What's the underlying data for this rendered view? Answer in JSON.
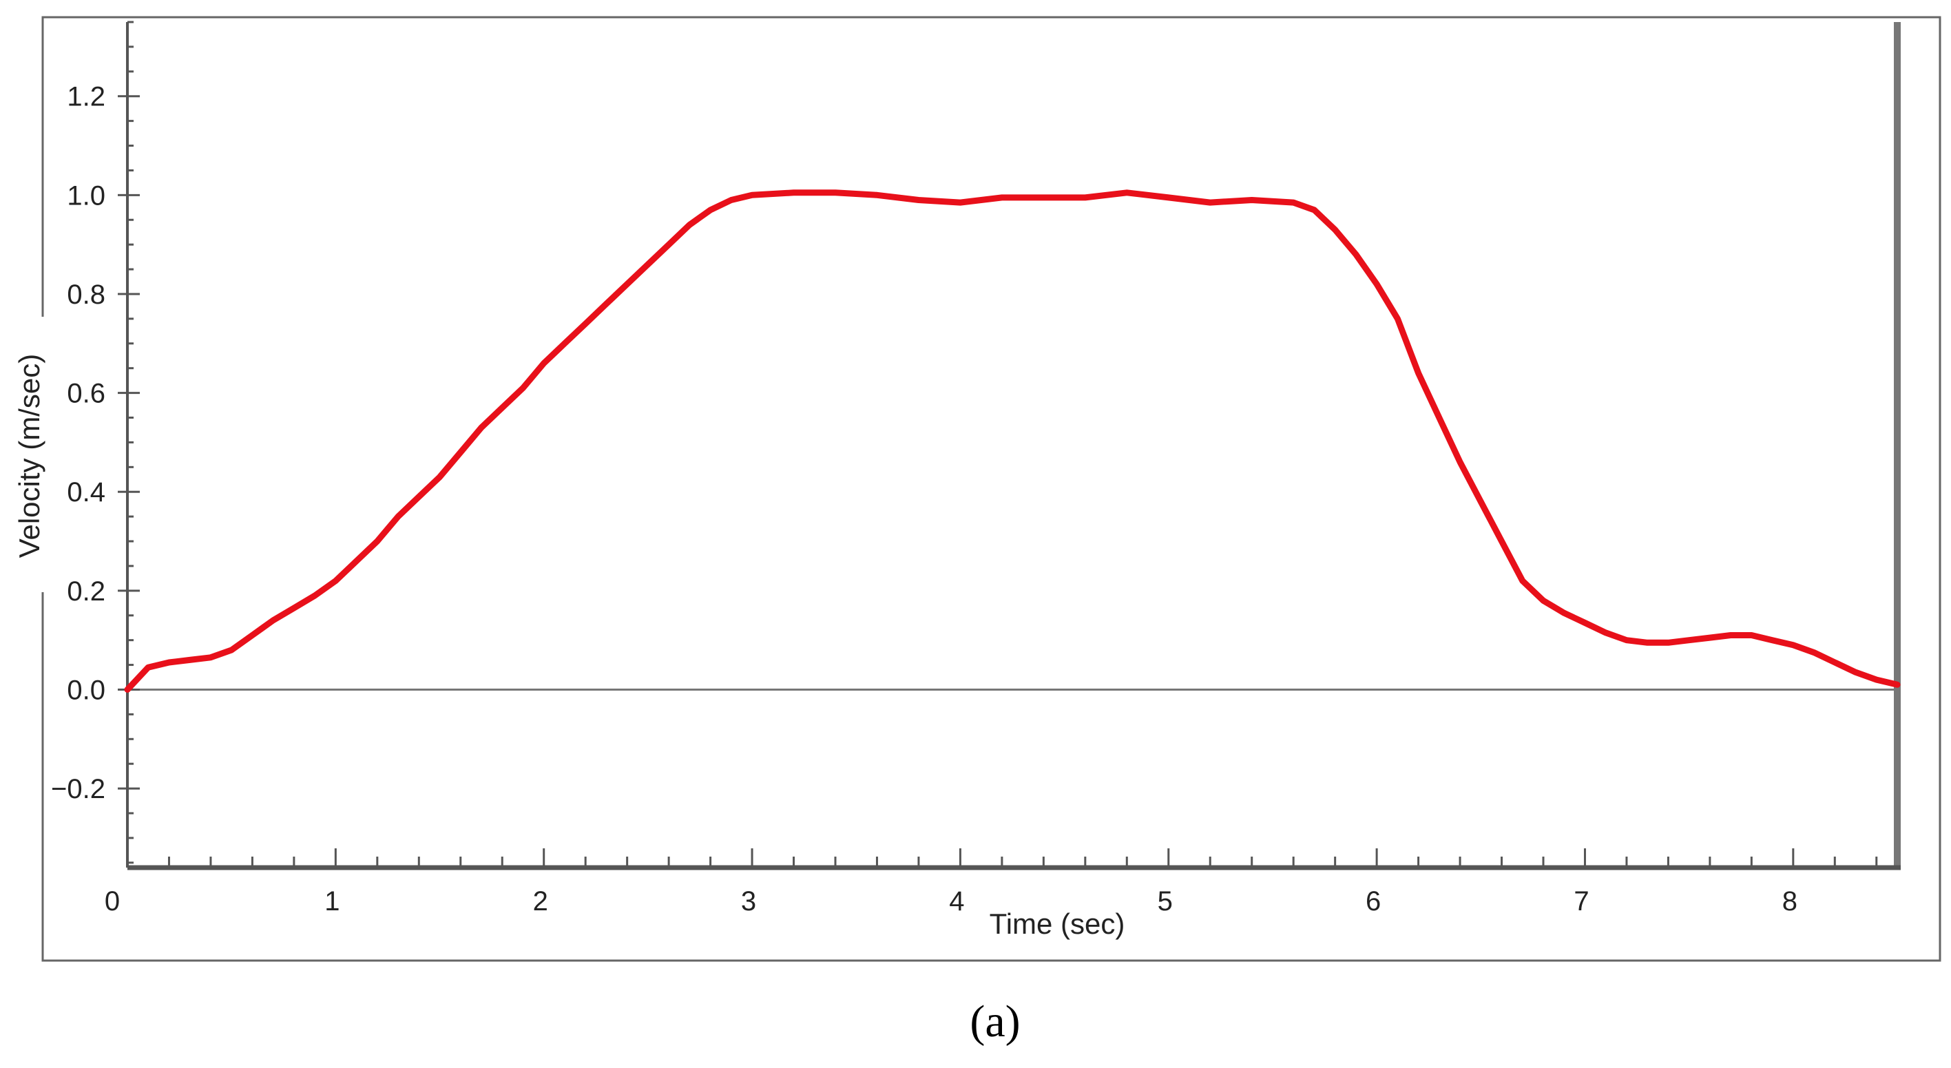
{
  "chart_data": {
    "type": "line",
    "xlabel": "Time (sec)",
    "ylabel": "Velocity (m/sec)",
    "caption": "(a)",
    "xlim": [
      0,
      8.5
    ],
    "ylim": [
      -0.36,
      1.35
    ],
    "x_ticks": [
      0,
      1,
      2,
      3,
      4,
      5,
      6,
      7,
      8
    ],
    "y_ticks": [
      -0.2,
      0.0,
      0.2,
      0.4,
      0.6,
      0.8,
      1.0,
      1.2
    ],
    "y_tick_labels": [
      "−0.2",
      "0.0",
      "0.2",
      "0.4",
      "0.6",
      "0.8",
      "1.0",
      "1.2"
    ],
    "grid": false,
    "zero_line": true,
    "colors": {
      "series": "#e8101a",
      "axis": "#555555",
      "frame": "#555555",
      "zero_line": "#777777"
    },
    "series": [
      {
        "x": [
          0.0,
          0.1,
          0.2,
          0.3,
          0.4,
          0.5,
          0.6,
          0.7,
          0.8,
          0.9,
          1.0,
          1.1,
          1.2,
          1.3,
          1.4,
          1.5,
          1.6,
          1.7,
          1.8,
          1.9,
          2.0,
          2.1,
          2.2,
          2.3,
          2.4,
          2.5,
          2.6,
          2.7,
          2.8,
          2.9,
          3.0,
          3.2,
          3.4,
          3.6,
          3.8,
          4.0,
          4.2,
          4.4,
          4.6,
          4.8,
          5.0,
          5.2,
          5.4,
          5.6,
          5.7,
          5.8,
          5.9,
          6.0,
          6.1,
          6.2,
          6.3,
          6.4,
          6.5,
          6.6,
          6.7,
          6.8,
          6.9,
          7.0,
          7.1,
          7.2,
          7.3,
          7.4,
          7.5,
          7.6,
          7.7,
          7.8,
          7.9,
          8.0,
          8.1,
          8.2,
          8.3,
          8.4,
          8.5
        ],
        "y": [
          0.0,
          0.045,
          0.055,
          0.06,
          0.065,
          0.08,
          0.11,
          0.14,
          0.165,
          0.19,
          0.22,
          0.26,
          0.3,
          0.35,
          0.39,
          0.43,
          0.48,
          0.53,
          0.57,
          0.61,
          0.66,
          0.7,
          0.74,
          0.78,
          0.82,
          0.86,
          0.9,
          0.94,
          0.97,
          0.99,
          1.0,
          1.005,
          1.005,
          1.0,
          0.99,
          0.985,
          0.995,
          0.995,
          0.995,
          1.005,
          0.995,
          0.985,
          0.99,
          0.985,
          0.97,
          0.93,
          0.88,
          0.82,
          0.75,
          0.64,
          0.55,
          0.46,
          0.38,
          0.3,
          0.22,
          0.18,
          0.155,
          0.135,
          0.115,
          0.1,
          0.095,
          0.095,
          0.1,
          0.105,
          0.11,
          0.11,
          0.1,
          0.09,
          0.075,
          0.055,
          0.035,
          0.02,
          0.01
        ]
      }
    ]
  }
}
